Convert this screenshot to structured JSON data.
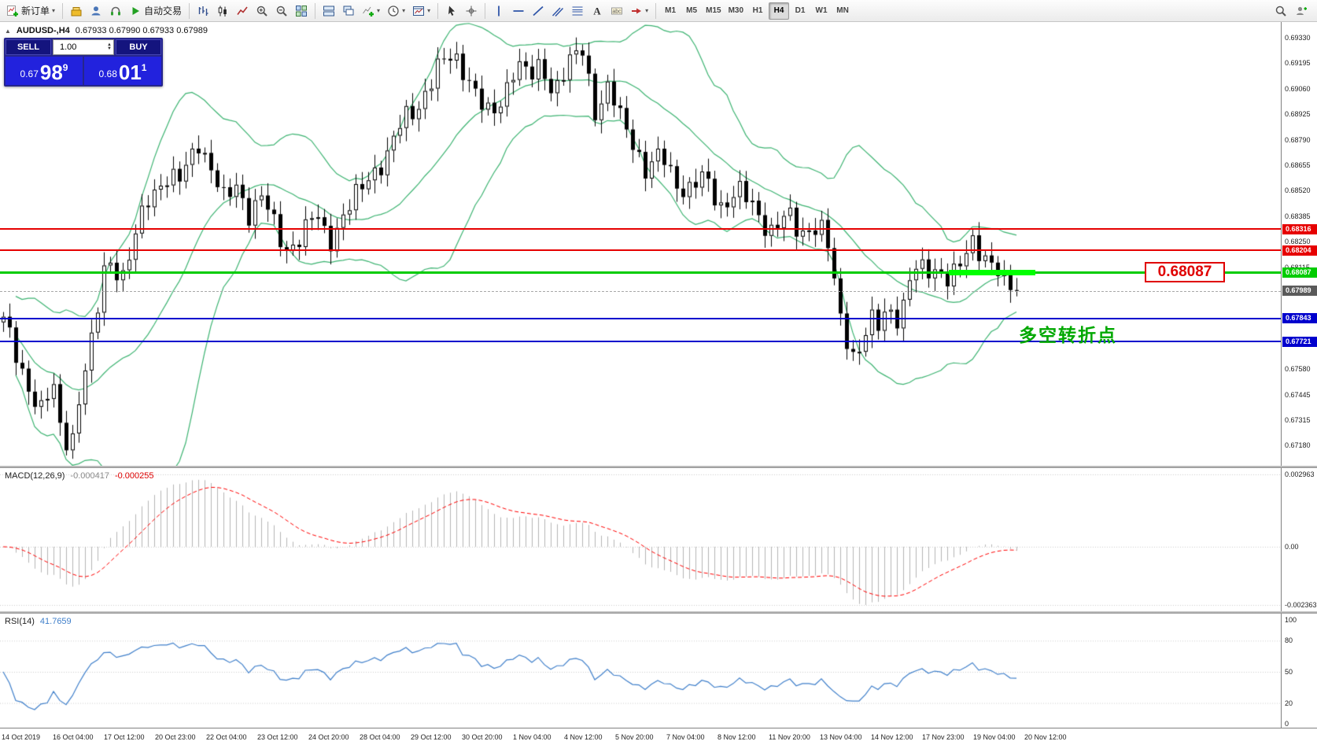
{
  "toolbar": {
    "new_order_label": "新订单",
    "autotrading_label": "自动交易",
    "timeframes": [
      "M1",
      "M5",
      "M15",
      "M30",
      "H1",
      "H4",
      "D1",
      "W1",
      "MN"
    ],
    "active_timeframe": "H4",
    "buttons": [
      {
        "type": "button",
        "icon": "new-order-icon",
        "label": "新订单",
        "name": "new-order-button",
        "dropdown": true
      },
      {
        "type": "sep"
      },
      {
        "type": "button",
        "icon": "market-watch-icon",
        "name": "market-watch-button"
      },
      {
        "type": "button",
        "icon": "profile-icon",
        "name": "profile-button"
      },
      {
        "type": "button",
        "icon": "support-icon",
        "name": "support-button"
      },
      {
        "type": "button",
        "icon": "autotrading-icon",
        "label": "自动交易",
        "name": "autotrading-button"
      },
      {
        "type": "sep"
      },
      {
        "type": "button",
        "icon": "bar-chart-icon",
        "name": "bar-chart-button"
      },
      {
        "type": "button",
        "icon": "candlestick-chart-icon",
        "name": "candlestick-chart-button"
      },
      {
        "type": "button",
        "icon": "line-chart-icon",
        "name": "line-chart-button"
      },
      {
        "type": "button",
        "icon": "zoom-in-icon",
        "name": "zoom-in-button"
      },
      {
        "type": "button",
        "icon": "zoom-out-icon",
        "name": "zoom-out-button"
      },
      {
        "type": "button",
        "icon": "tile-windows-icon",
        "name": "tile-windows-button"
      },
      {
        "type": "sep"
      },
      {
        "type": "button",
        "icon": "arrange-windows-icon",
        "name": "arrange-windows-button"
      },
      {
        "type": "button",
        "icon": "cascade-windows-icon",
        "name": "cascade-windows-button"
      },
      {
        "type": "button",
        "icon": "indicators-icon",
        "name": "indicators-button",
        "dropdown": true
      },
      {
        "type": "button",
        "icon": "periods-icon",
        "name": "periods-button",
        "dropdown": true
      },
      {
        "type": "button",
        "icon": "templates-icon",
        "name": "templates-button",
        "dropdown": true
      },
      {
        "type": "sep"
      },
      {
        "type": "button",
        "icon": "cursor-icon",
        "name": "cursor-button"
      },
      {
        "type": "button",
        "icon": "crosshair-icon",
        "name": "crosshair-button"
      },
      {
        "type": "sep"
      },
      {
        "type": "button",
        "icon": "vertical-line-icon",
        "name": "vertical-line-button"
      },
      {
        "type": "button",
        "icon": "horizontal-line-icon",
        "name": "horizontal-line-button"
      },
      {
        "type": "button",
        "icon": "trendline-icon",
        "name": "trendline-button"
      },
      {
        "type": "button",
        "icon": "equidistant-channel-icon",
        "name": "equidistant-channel-button"
      },
      {
        "type": "button",
        "icon": "fibonacci-icon",
        "name": "fibonacci-button"
      },
      {
        "type": "button",
        "icon": "text-icon",
        "name": "text-button"
      },
      {
        "type": "button",
        "icon": "text-label-icon",
        "name": "text-label-button"
      },
      {
        "type": "button",
        "icon": "arrows-icon",
        "name": "arrows-button",
        "dropdown": true
      },
      {
        "type": "sep"
      }
    ],
    "right_buttons": [
      {
        "icon": "search-icon",
        "name": "search-button"
      },
      {
        "icon": "community-icon",
        "name": "community-button"
      }
    ]
  },
  "chart": {
    "symbol_label": "AUDUSD-,H4",
    "ohlc": "0.67933 0.67990 0.67933 0.67989",
    "trade_panel": {
      "sell_label": "SELL",
      "buy_label": "BUY",
      "volume": "1.00",
      "sell_price": {
        "prefix": "0.67",
        "big": "98",
        "sup": "9"
      },
      "buy_price": {
        "prefix": "0.68",
        "big": "01",
        "sup": "1"
      }
    },
    "annotation_text": "多空转折点",
    "callout": {
      "text": "0.68087"
    },
    "price_scale": [
      "0.69330",
      "0.69195",
      "0.69060",
      "0.68925",
      "0.68790",
      "0.68655",
      "0.68520",
      "0.68385",
      "0.68250",
      "0.68115",
      "0.67980",
      "0.67845",
      "0.67710",
      "0.67580",
      "0.67445",
      "0.67315",
      "0.67180"
    ],
    "hlines": [
      {
        "label": "0.68316",
        "value": 0.68316,
        "color": "#e60000",
        "width": 2
      },
      {
        "label": "0.68204",
        "value": 0.68204,
        "color": "#e60000",
        "width": 2
      },
      {
        "label": "0.68087",
        "value": 0.68087,
        "color": "#00cc00",
        "width": 3
      },
      {
        "label": "0.67843",
        "value": 0.67843,
        "color": "#0000cd",
        "width": 2
      },
      {
        "label": "0.67721",
        "value": 0.67721,
        "color": "#0000cd",
        "width": 2
      }
    ],
    "bid_line": {
      "label": "0.67989",
      "value": 0.67989,
      "tag_color": "#5a5a5a"
    }
  },
  "macd": {
    "label": "MACD(12,26,9)",
    "value1": "-0.000417",
    "value2": "-0.000255",
    "scale": [
      "0.002963",
      "0.00",
      "-0.002363"
    ]
  },
  "rsi": {
    "label": "RSI(14)",
    "value": "41.7659",
    "scale": [
      "100",
      "80",
      "50",
      "20",
      "0"
    ]
  },
  "time_axis": [
    "14 Oct 2019",
    "16 Oct 04:00",
    "17 Oct 12:00",
    "20 Oct 23:00",
    "22 Oct 04:00",
    "23 Oct 12:00",
    "24 Oct 20:00",
    "28 Oct 04:00",
    "29 Oct 12:00",
    "30 Oct 20:00",
    "1 Nov 04:00",
    "4 Nov 12:00",
    "5 Nov 20:00",
    "7 Nov 04:00",
    "8 Nov 12:00",
    "11 Nov 20:00",
    "13 Nov 04:00",
    "14 Nov 12:00",
    "17 Nov 23:00",
    "19 Nov 04:00",
    "20 Nov 12:00"
  ],
  "chart_data": {
    "type": "candlestick",
    "symbol": "AUDUSD",
    "timeframe": "H4",
    "date_range": [
      "14 Oct 2019",
      "20 Nov 2019"
    ],
    "ylim": [
      0.67125,
      0.69395
    ],
    "candle_count": 162,
    "last_close": 0.67989,
    "price_path": [
      [
        0,
        0.6782
      ],
      [
        0.016,
        0.676
      ],
      [
        0.037,
        0.6735
      ],
      [
        0.049,
        0.6748
      ],
      [
        0.058,
        0.672
      ],
      [
        0.066,
        0.6716
      ],
      [
        0.078,
        0.6752
      ],
      [
        0.09,
        0.6775
      ],
      [
        0.098,
        0.681
      ],
      [
        0.107,
        0.6816
      ],
      [
        0.119,
        0.6806
      ],
      [
        0.132,
        0.683
      ],
      [
        0.144,
        0.685
      ],
      [
        0.16,
        0.686
      ],
      [
        0.173,
        0.6855
      ],
      [
        0.185,
        0.687
      ],
      [
        0.193,
        0.688
      ],
      [
        0.206,
        0.6862
      ],
      [
        0.218,
        0.6845
      ],
      [
        0.23,
        0.6856
      ],
      [
        0.243,
        0.684
      ],
      [
        0.255,
        0.6848
      ],
      [
        0.27,
        0.683
      ],
      [
        0.28,
        0.6822
      ],
      [
        0.296,
        0.6828
      ],
      [
        0.309,
        0.684
      ],
      [
        0.321,
        0.6826
      ],
      [
        0.333,
        0.6836
      ],
      [
        0.346,
        0.6846
      ],
      [
        0.362,
        0.6862
      ],
      [
        0.379,
        0.687
      ],
      [
        0.395,
        0.689
      ],
      [
        0.412,
        0.69
      ],
      [
        0.428,
        0.6915
      ],
      [
        0.444,
        0.6925
      ],
      [
        0.457,
        0.6915
      ],
      [
        0.469,
        0.6898
      ],
      [
        0.481,
        0.689
      ],
      [
        0.494,
        0.6905
      ],
      [
        0.506,
        0.692
      ],
      [
        0.519,
        0.691
      ],
      [
        0.531,
        0.692
      ],
      [
        0.543,
        0.6905
      ],
      [
        0.556,
        0.6916
      ],
      [
        0.572,
        0.6928
      ],
      [
        0.584,
        0.6895
      ],
      [
        0.597,
        0.6905
      ],
      [
        0.609,
        0.689
      ],
      [
        0.621,
        0.688
      ],
      [
        0.634,
        0.6862
      ],
      [
        0.65,
        0.687
      ],
      [
        0.663,
        0.6858
      ],
      [
        0.675,
        0.6852
      ],
      [
        0.691,
        0.6858
      ],
      [
        0.708,
        0.6845
      ],
      [
        0.724,
        0.6852
      ],
      [
        0.741,
        0.6842
      ],
      [
        0.757,
        0.6832
      ],
      [
        0.774,
        0.6838
      ],
      [
        0.786,
        0.6828
      ],
      [
        0.798,
        0.6836
      ],
      [
        0.811,
        0.683
      ],
      [
        0.819,
        0.6805
      ],
      [
        0.827,
        0.678
      ],
      [
        0.835,
        0.6772
      ],
      [
        0.841,
        0.6763
      ],
      [
        0.848,
        0.6775
      ],
      [
        0.856,
        0.6782
      ],
      [
        0.864,
        0.6778
      ],
      [
        0.872,
        0.679
      ],
      [
        0.885,
        0.6786
      ],
      [
        0.897,
        0.681
      ],
      [
        0.909,
        0.6808
      ],
      [
        0.922,
        0.6812
      ],
      [
        0.934,
        0.6806
      ],
      [
        0.947,
        0.6812
      ],
      [
        0.955,
        0.6825
      ],
      [
        0.967,
        0.682
      ],
      [
        0.979,
        0.6812
      ],
      [
        0.988,
        0.68
      ],
      [
        1,
        0.6799
      ]
    ],
    "indicators": [
      {
        "name": "Bollinger Bands",
        "period": 20,
        "deviation": 2,
        "color": "#3CB371"
      },
      {
        "name": "MACD",
        "fast": 12,
        "slow": 26,
        "signal": 9,
        "current_values": [
          -0.000417,
          -0.000255
        ],
        "scale_max": 0.002963,
        "scale_min": -0.002363
      },
      {
        "name": "RSI",
        "period": 14,
        "current_value": 41.7659,
        "levels": [
          80,
          50,
          20
        ]
      }
    ],
    "hlines": [
      0.68316,
      0.68204,
      0.68087,
      0.67843,
      0.67721
    ]
  }
}
